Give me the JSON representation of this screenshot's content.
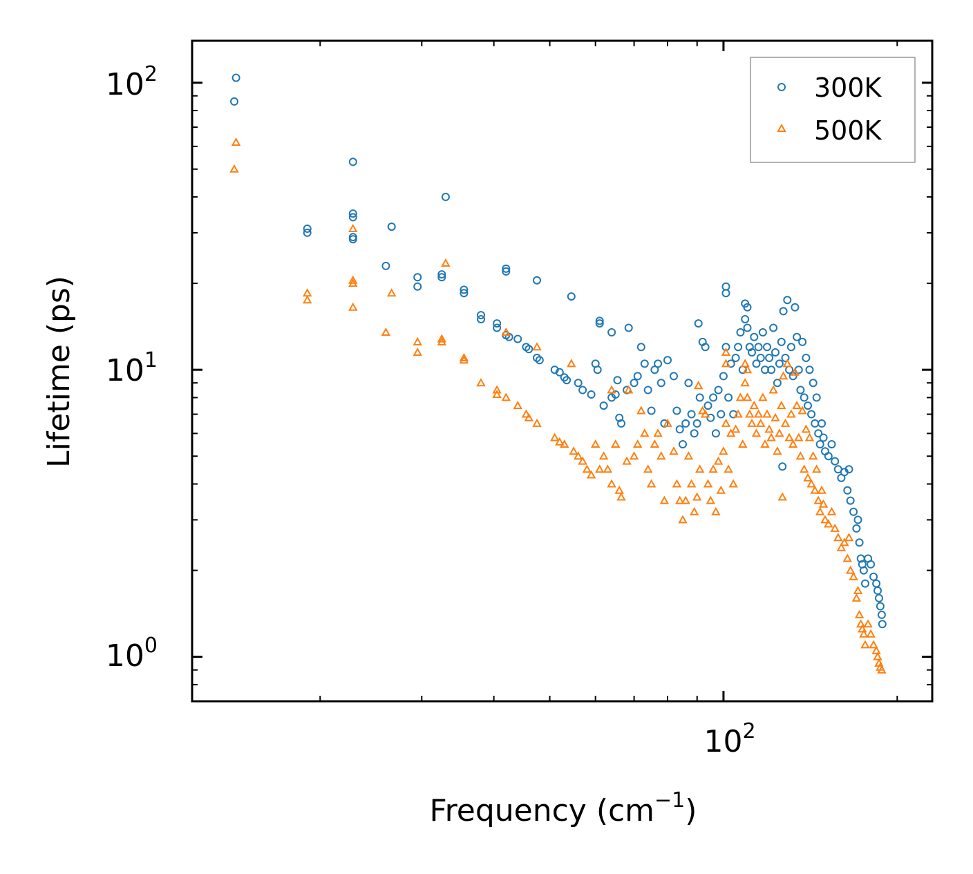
{
  "chart_data": {
    "type": "scatter",
    "xscale": "log",
    "yscale": "log",
    "xlim": [
      12,
      230
    ],
    "ylim": [
      0.7,
      140
    ],
    "xlabel": "Frequency (cm",
    "xlabel_sup": "−1",
    "xlabel_close": ")",
    "ylabel": "Lifetime (ps)",
    "xticks": [
      {
        "base": "10",
        "exp": "2",
        "value": 100
      }
    ],
    "yticks": [
      {
        "base": "10",
        "exp": "2",
        "value": 100
      },
      {
        "base": "10",
        "exp": "1",
        "value": 10
      },
      {
        "base": "10",
        "exp": "0",
        "value": 1
      }
    ],
    "legend_position": "top-right",
    "series": [
      {
        "name": "300K",
        "marker": "circle",
        "color": "#1f77b4",
        "points": [
          [
            14.3,
            104
          ],
          [
            14.2,
            86
          ],
          [
            19,
            31
          ],
          [
            19,
            30
          ],
          [
            22.8,
            53
          ],
          [
            22.8,
            35
          ],
          [
            22.8,
            34
          ],
          [
            22.8,
            29
          ],
          [
            22.8,
            28.5
          ],
          [
            26,
            23
          ],
          [
            26.6,
            31.5
          ],
          [
            29.5,
            21
          ],
          [
            29.5,
            19.5
          ],
          [
            32.5,
            21.5
          ],
          [
            32.5,
            21
          ],
          [
            33,
            40
          ],
          [
            35.5,
            19
          ],
          [
            35.5,
            18.5
          ],
          [
            38,
            15.5
          ],
          [
            38,
            15
          ],
          [
            40.5,
            14.5
          ],
          [
            40.5,
            14
          ],
          [
            42,
            13.2
          ],
          [
            42.5,
            13
          ],
          [
            42,
            22.5
          ],
          [
            42,
            22
          ],
          [
            44,
            12.8
          ],
          [
            45.5,
            12
          ],
          [
            46,
            11.8
          ],
          [
            47.5,
            11
          ],
          [
            48,
            10.8
          ],
          [
            47.5,
            20.5
          ],
          [
            51,
            10
          ],
          [
            52,
            9.8
          ],
          [
            53,
            9.4
          ],
          [
            53.5,
            9.2
          ],
          [
            54.5,
            18
          ],
          [
            56,
            9
          ],
          [
            57,
            8.5
          ],
          [
            59,
            8.2
          ],
          [
            60,
            10.5
          ],
          [
            60.5,
            10
          ],
          [
            61,
            14.8
          ],
          [
            61,
            14.5
          ],
          [
            62,
            7.5
          ],
          [
            64,
            8
          ],
          [
            64,
            13.5
          ],
          [
            65,
            8.2
          ],
          [
            65.5,
            9.2
          ],
          [
            66,
            6.8
          ],
          [
            66.5,
            6.5
          ],
          [
            68,
            8.5
          ],
          [
            68.5,
            14
          ],
          [
            70,
            9
          ],
          [
            71,
            9.5
          ],
          [
            72,
            12
          ],
          [
            73,
            10.5
          ],
          [
            74,
            8.5
          ],
          [
            75,
            7.2
          ],
          [
            76,
            10
          ],
          [
            77,
            10.5
          ],
          [
            78,
            9
          ],
          [
            79,
            6.5
          ],
          [
            80,
            10.8
          ],
          [
            82,
            9.5
          ],
          [
            83,
            7.2
          ],
          [
            84,
            6.2
          ],
          [
            85,
            5.5
          ],
          [
            86,
            6.5
          ],
          [
            87,
            9
          ],
          [
            88,
            7
          ],
          [
            89,
            6
          ],
          [
            90,
            6.5
          ],
          [
            90.5,
            14.5
          ],
          [
            91,
            8
          ],
          [
            92,
            12.5
          ],
          [
            93,
            12
          ],
          [
            94,
            7.5
          ],
          [
            95,
            6.8
          ],
          [
            96,
            8
          ],
          [
            97,
            6
          ],
          [
            98,
            8.5
          ],
          [
            99,
            7
          ],
          [
            100,
            9.5
          ],
          [
            101,
            19.5
          ],
          [
            101,
            18.5
          ],
          [
            101,
            12
          ],
          [
            102,
            8
          ],
          [
            103,
            10.5
          ],
          [
            104,
            7
          ],
          [
            105,
            11
          ],
          [
            106,
            12
          ],
          [
            107,
            13.5
          ],
          [
            108,
            10
          ],
          [
            109,
            15
          ],
          [
            109,
            17
          ],
          [
            110,
            14
          ],
          [
            110,
            16.5
          ],
          [
            111,
            12
          ],
          [
            112,
            11.5
          ],
          [
            113,
            13
          ],
          [
            114,
            10.5
          ],
          [
            115,
            12
          ],
          [
            116,
            11
          ],
          [
            117,
            13.5
          ],
          [
            118,
            10
          ],
          [
            119,
            12
          ],
          [
            120,
            11
          ],
          [
            121,
            10
          ],
          [
            122,
            14
          ],
          [
            123,
            11.5
          ],
          [
            124,
            9
          ],
          [
            125,
            10.5
          ],
          [
            126,
            12.5
          ],
          [
            127,
            16
          ],
          [
            128,
            11
          ],
          [
            129,
            17.5
          ],
          [
            130,
            10
          ],
          [
            131,
            12
          ],
          [
            132,
            9.5
          ],
          [
            133,
            16.5
          ],
          [
            134,
            13
          ],
          [
            135,
            10
          ],
          [
            136,
            8.5
          ],
          [
            137,
            12.5
          ],
          [
            138,
            8
          ],
          [
            139,
            11
          ],
          [
            140,
            7.5
          ],
          [
            141,
            10
          ],
          [
            142,
            7
          ],
          [
            143,
            9
          ],
          [
            144,
            6.5
          ],
          [
            145,
            8
          ],
          [
            146,
            6
          ],
          [
            147,
            5.5
          ],
          [
            148,
            6.5
          ],
          [
            149,
            5.8
          ],
          [
            150,
            5.2
          ],
          [
            152,
            5
          ],
          [
            154,
            5.5
          ],
          [
            156,
            4.8
          ],
          [
            158,
            4.5
          ],
          [
            160,
            4.2
          ],
          [
            162,
            4.4
          ],
          [
            164,
            3.8
          ],
          [
            165,
            4.5
          ],
          [
            166,
            3.5
          ],
          [
            168,
            3.2
          ],
          [
            170,
            2.8
          ],
          [
            171,
            3
          ],
          [
            172,
            2.5
          ],
          [
            173,
            2.2
          ],
          [
            174,
            2.1
          ],
          [
            175,
            2
          ],
          [
            176,
            1.8
          ],
          [
            178,
            2.2
          ],
          [
            180,
            2.1
          ],
          [
            182,
            1.9
          ],
          [
            184,
            1.8
          ],
          [
            185,
            1.7
          ],
          [
            186,
            1.6
          ],
          [
            187,
            1.5
          ],
          [
            188,
            1.4
          ],
          [
            188.5,
            1.3
          ],
          [
            126.5,
            4.6
          ]
        ]
      },
      {
        "name": "500K",
        "marker": "triangle",
        "color": "#ff7f0e",
        "points": [
          [
            14.3,
            62
          ],
          [
            14.2,
            50
          ],
          [
            19,
            18.5
          ],
          [
            19,
            17.5
          ],
          [
            22.8,
            31
          ],
          [
            22.8,
            20.5
          ],
          [
            22.8,
            20
          ],
          [
            22.8,
            16.5
          ],
          [
            26,
            13.5
          ],
          [
            26.6,
            18.5
          ],
          [
            29.5,
            12.5
          ],
          [
            29.5,
            11.5
          ],
          [
            32.5,
            12.5
          ],
          [
            32.5,
            12.8
          ],
          [
            33,
            23.5
          ],
          [
            35.5,
            11
          ],
          [
            35.5,
            10.8
          ],
          [
            38,
            9
          ],
          [
            40.5,
            8.5
          ],
          [
            40.5,
            8.2
          ],
          [
            42,
            8
          ],
          [
            42,
            13.5
          ],
          [
            44,
            7.5
          ],
          [
            45.5,
            7
          ],
          [
            46,
            6.8
          ],
          [
            47.5,
            6.5
          ],
          [
            47.5,
            12
          ],
          [
            51,
            5.8
          ],
          [
            52,
            5.6
          ],
          [
            53,
            5.5
          ],
          [
            54.5,
            10.5
          ],
          [
            55,
            5.2
          ],
          [
            56,
            5
          ],
          [
            57,
            4.8
          ],
          [
            58,
            4.5
          ],
          [
            59,
            4.3
          ],
          [
            60,
            5.5
          ],
          [
            61,
            4.5
          ],
          [
            62,
            5
          ],
          [
            63,
            4.5
          ],
          [
            64,
            4
          ],
          [
            64,
            8.5
          ],
          [
            65,
            5.5
          ],
          [
            66,
            3.8
          ],
          [
            66.5,
            3.6
          ],
          [
            68,
            4.8
          ],
          [
            68.5,
            8.5
          ],
          [
            70,
            5
          ],
          [
            71,
            5.5
          ],
          [
            72,
            7.2
          ],
          [
            73,
            6
          ],
          [
            74,
            4.5
          ],
          [
            75,
            4
          ],
          [
            76,
            5.5
          ],
          [
            77,
            6
          ],
          [
            78,
            5
          ],
          [
            79,
            3.5
          ],
          [
            80,
            6.5
          ],
          [
            82,
            5.2
          ],
          [
            83,
            4
          ],
          [
            84,
            3.5
          ],
          [
            85,
            3
          ],
          [
            86,
            3.5
          ],
          [
            87,
            5
          ],
          [
            88,
            4
          ],
          [
            89,
            3.2
          ],
          [
            90,
            3.6
          ],
          [
            90.5,
            8.8
          ],
          [
            91,
            4.5
          ],
          [
            92,
            7.2
          ],
          [
            93,
            7
          ],
          [
            94,
            4
          ],
          [
            95,
            3.5
          ],
          [
            96,
            4.5
          ],
          [
            97,
            3.2
          ],
          [
            98,
            4.8
          ],
          [
            99,
            3.8
          ],
          [
            100,
            5.2
          ],
          [
            101,
            11.5
          ],
          [
            101,
            10.5
          ],
          [
            101,
            6.5
          ],
          [
            102,
            4.5
          ],
          [
            103,
            6
          ],
          [
            104,
            4
          ],
          [
            105,
            6.2
          ],
          [
            106,
            7
          ],
          [
            107,
            8
          ],
          [
            108,
            5.5
          ],
          [
            109,
            9
          ],
          [
            109,
            10.5
          ],
          [
            110,
            8
          ],
          [
            110,
            10
          ],
          [
            111,
            7
          ],
          [
            112,
            6.5
          ],
          [
            113,
            7.5
          ],
          [
            114,
            6
          ],
          [
            115,
            7
          ],
          [
            116,
            6.5
          ],
          [
            117,
            8
          ],
          [
            118,
            5.5
          ],
          [
            119,
            7
          ],
          [
            120,
            6.2
          ],
          [
            121,
            5.8
          ],
          [
            122,
            8.5
          ],
          [
            123,
            6.8
          ],
          [
            124,
            5.2
          ],
          [
            125,
            6
          ],
          [
            126,
            7.5
          ],
          [
            127,
            9.5
          ],
          [
            128,
            6.5
          ],
          [
            129,
            10.5
          ],
          [
            130,
            5.8
          ],
          [
            131,
            7
          ],
          [
            132,
            5.5
          ],
          [
            133,
            9.8
          ],
          [
            134,
            7.5
          ],
          [
            135,
            5.8
          ],
          [
            136,
            5
          ],
          [
            137,
            7.2
          ],
          [
            138,
            4.5
          ],
          [
            139,
            6.2
          ],
          [
            140,
            4.2
          ],
          [
            141,
            5.8
          ],
          [
            142,
            4
          ],
          [
            143,
            5
          ],
          [
            144,
            3.8
          ],
          [
            145,
            4.5
          ],
          [
            146,
            3.5
          ],
          [
            147,
            3.2
          ],
          [
            148,
            3.8
          ],
          [
            149,
            3.4
          ],
          [
            150,
            3
          ],
          [
            152,
            2.9
          ],
          [
            154,
            3.2
          ],
          [
            156,
            2.8
          ],
          [
            158,
            2.6
          ],
          [
            160,
            2.4
          ],
          [
            162,
            2.5
          ],
          [
            164,
            2.2
          ],
          [
            165,
            2.6
          ],
          [
            166,
            2
          ],
          [
            168,
            1.9
          ],
          [
            170,
            1.6
          ],
          [
            171,
            1.7
          ],
          [
            172,
            1.4
          ],
          [
            173,
            1.3
          ],
          [
            174,
            1.25
          ],
          [
            175,
            1.2
          ],
          [
            176,
            1.1
          ],
          [
            178,
            1.3
          ],
          [
            180,
            1.2
          ],
          [
            182,
            1.1
          ],
          [
            184,
            1.05
          ],
          [
            185,
            1
          ],
          [
            186,
            0.95
          ],
          [
            187,
            0.92
          ],
          [
            188,
            0.9
          ],
          [
            126.5,
            3.6
          ]
        ]
      }
    ]
  }
}
